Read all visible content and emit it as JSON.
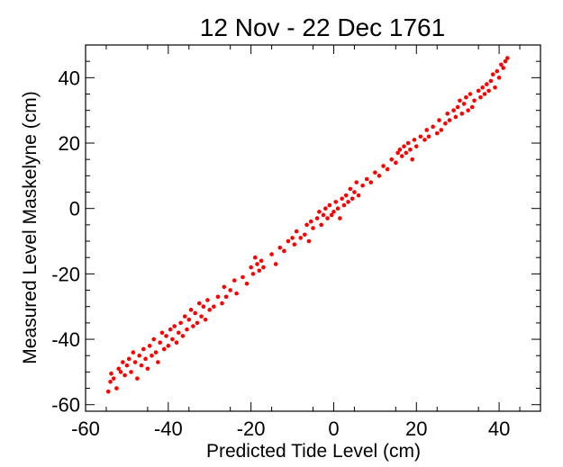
{
  "chart_data": {
    "type": "scatter",
    "title": "12 Nov -  22 Dec 1761",
    "xlabel": "Predicted Tide Level (cm)",
    "ylabel": "Measured Level Maskelyne (cm)",
    "xlim": [
      -60,
      50
    ],
    "ylim": [
      -62,
      50
    ],
    "xticks": [
      -60,
      -40,
      -20,
      0,
      20,
      40
    ],
    "yticks": [
      -60,
      -40,
      -20,
      0,
      20,
      40
    ],
    "grid": false,
    "marker_color": "#ff0000",
    "series": [
      {
        "points": [
          [
            -54.5,
            -56
          ],
          [
            -54,
            -53
          ],
          [
            -53.8,
            -50.5
          ],
          [
            -53.2,
            -52
          ],
          [
            -52.5,
            -55
          ],
          [
            -52,
            -49
          ],
          [
            -51.5,
            -50
          ],
          [
            -51,
            -47
          ],
          [
            -50.5,
            -51
          ],
          [
            -50,
            -48
          ],
          [
            -49.5,
            -46
          ],
          [
            -49,
            -50
          ],
          [
            -48.5,
            -44
          ],
          [
            -48,
            -47
          ],
          [
            -47.5,
            -52
          ],
          [
            -47,
            -45
          ],
          [
            -46.5,
            -48
          ],
          [
            -46,
            -43
          ],
          [
            -45.5,
            -46
          ],
          [
            -45,
            -49
          ],
          [
            -44.5,
            -42
          ],
          [
            -44,
            -45
          ],
          [
            -43.5,
            -40
          ],
          [
            -43,
            -44
          ],
          [
            -42.5,
            -47
          ],
          [
            -42,
            -41
          ],
          [
            -41.5,
            -38
          ],
          [
            -41,
            -43
          ],
          [
            -40.5,
            -39
          ],
          [
            -40,
            -42
          ],
          [
            -39.5,
            -37
          ],
          [
            -39,
            -40
          ],
          [
            -38.5,
            -36
          ],
          [
            -38,
            -41
          ],
          [
            -37.5,
            -38
          ],
          [
            -37,
            -35
          ],
          [
            -36.5,
            -39
          ],
          [
            -36,
            -33
          ],
          [
            -35.5,
            -37
          ],
          [
            -35,
            -34
          ],
          [
            -34.5,
            -31
          ],
          [
            -34,
            -36
          ],
          [
            -33.5,
            -32
          ],
          [
            -33,
            -35
          ],
          [
            -32.5,
            -29
          ],
          [
            -32,
            -33
          ],
          [
            -31.5,
            -30
          ],
          [
            -31,
            -34
          ],
          [
            -30.5,
            -28
          ],
          [
            -30,
            -31
          ],
          [
            -29,
            -30
          ],
          [
            -28,
            -27
          ],
          [
            -27,
            -29
          ],
          [
            -26.5,
            -24
          ],
          [
            -26,
            -27
          ],
          [
            -25,
            -25
          ],
          [
            -24,
            -22
          ],
          [
            -23.5,
            -26
          ],
          [
            -22,
            -21
          ],
          [
            -21,
            -23
          ],
          [
            -20,
            -18
          ],
          [
            -19.5,
            -20
          ],
          [
            -19,
            -15
          ],
          [
            -18.5,
            -17
          ],
          [
            -18,
            -19
          ],
          [
            -17.5,
            -16
          ],
          [
            -17,
            -18
          ],
          [
            -15,
            -14
          ],
          [
            -14,
            -17
          ],
          [
            -13,
            -12
          ],
          [
            -12,
            -13
          ],
          [
            -11,
            -10
          ],
          [
            -10,
            -9
          ],
          [
            -9.5,
            -11
          ],
          [
            -9,
            -7
          ],
          [
            -8,
            -9
          ],
          [
            -7,
            -8
          ],
          [
            -6.5,
            -5
          ],
          [
            -6,
            -10
          ],
          [
            -5.5,
            -4
          ],
          [
            -5,
            -6
          ],
          [
            -4,
            -3
          ],
          [
            -3.5,
            -1
          ],
          [
            -3,
            -5
          ],
          [
            -2.5,
            -2
          ],
          [
            -2,
            0
          ],
          [
            -1.5,
            -3
          ],
          [
            -1,
            1
          ],
          [
            -0.5,
            -2
          ],
          [
            0,
            -1
          ],
          [
            0.5,
            2
          ],
          [
            1,
            0
          ],
          [
            1.5,
            -3
          ],
          [
            2,
            3
          ],
          [
            2.5,
            1
          ],
          [
            3,
            4
          ],
          [
            3.5,
            2
          ],
          [
            4,
            6
          ],
          [
            4.5,
            3
          ],
          [
            5,
            5
          ],
          [
            5.5,
            8
          ],
          [
            6,
            4
          ],
          [
            7,
            7
          ],
          [
            8,
            9
          ],
          [
            9,
            8
          ],
          [
            10,
            11
          ],
          [
            11,
            10
          ],
          [
            12,
            13
          ],
          [
            13,
            12
          ],
          [
            14,
            15
          ],
          [
            15,
            14
          ],
          [
            15.5,
            17
          ],
          [
            16,
            18
          ],
          [
            16.5,
            16
          ],
          [
            17,
            19
          ],
          [
            17.5,
            17
          ],
          [
            18,
            20
          ],
          [
            18.5,
            18
          ],
          [
            19,
            15
          ],
          [
            19.5,
            21
          ],
          [
            20,
            19
          ],
          [
            21,
            22
          ],
          [
            22,
            21
          ],
          [
            22.5,
            24
          ],
          [
            23,
            22
          ],
          [
            24,
            25
          ],
          [
            25,
            23
          ],
          [
            25.5,
            27
          ],
          [
            26,
            24
          ],
          [
            27,
            26
          ],
          [
            27.5,
            29
          ],
          [
            28,
            27
          ],
          [
            29,
            30
          ],
          [
            29.5,
            28
          ],
          [
            30,
            31
          ],
          [
            30.5,
            33
          ],
          [
            31,
            29
          ],
          [
            31.5,
            32
          ],
          [
            32,
            34
          ],
          [
            32.5,
            30
          ],
          [
            33,
            35
          ],
          [
            33.5,
            31
          ],
          [
            34,
            33
          ],
          [
            35,
            36
          ],
          [
            35.5,
            34
          ],
          [
            36,
            37
          ],
          [
            36.5,
            35
          ],
          [
            37,
            38
          ],
          [
            37.5,
            36
          ],
          [
            38,
            39
          ],
          [
            38.5,
            41
          ],
          [
            39,
            37
          ],
          [
            39.5,
            42
          ],
          [
            40,
            40
          ],
          [
            40.5,
            44
          ],
          [
            41,
            43
          ],
          [
            41.5,
            45
          ],
          [
            42,
            46
          ]
        ]
      }
    ]
  }
}
